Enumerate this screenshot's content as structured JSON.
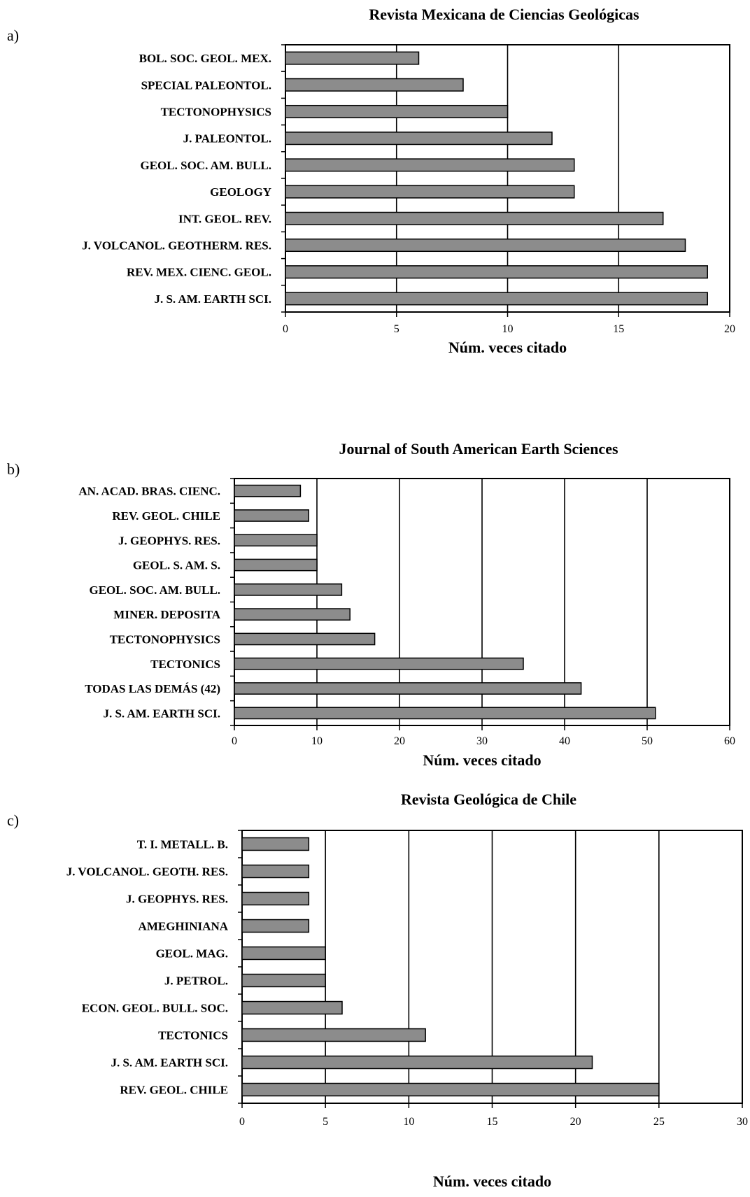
{
  "chart_data": [
    {
      "type": "bar",
      "orientation": "horizontal",
      "panel_label": "a)",
      "title": "Revista Mexicana de Ciencias Geológicas",
      "xlabel": "Núm. veces citado",
      "ylabel": "",
      "categories": [
        "BOL. SOC. GEOL. MEX.",
        "SPECIAL PALEONTOL.",
        "TECTONOPHYSICS",
        "J. PALEONTOL.",
        "GEOL. SOC. AM. BULL.",
        "GEOLOGY",
        "INT. GEOL. REV.",
        "J. VOLCANOL. GEOTHERM. RES.",
        "REV. MEX. CIENC. GEOL.",
        "J. S. AM. EARTH SCI."
      ],
      "values": [
        6,
        8,
        10,
        12,
        13,
        13,
        17,
        18,
        19,
        19
      ],
      "xlim": [
        0,
        20
      ],
      "xticks": [
        0,
        5,
        10,
        15,
        20
      ],
      "grid": true,
      "bar_color": "#8c8c8c"
    },
    {
      "type": "bar",
      "orientation": "horizontal",
      "panel_label": "b)",
      "title": "Journal of South American Earth Sciences",
      "xlabel": "Núm. veces citado",
      "ylabel": "",
      "categories": [
        "AN. ACAD. BRAS. CIENC.",
        "REV. GEOL. CHILE",
        "J. GEOPHYS. RES.",
        "GEOL. S. AM. S.",
        "GEOL. SOC. AM. BULL.",
        "MINER. DEPOSITA",
        "TECTONOPHYSICS",
        "TECTONICS",
        "TODAS LAS DEMÁS (42)",
        "J. S. AM. EARTH SCI."
      ],
      "values": [
        8,
        9,
        10,
        10,
        13,
        14,
        17,
        35,
        42,
        51
      ],
      "xlim": [
        0,
        60
      ],
      "xticks": [
        0,
        10,
        20,
        30,
        40,
        50,
        60
      ],
      "grid": true,
      "bar_color": "#8c8c8c"
    },
    {
      "type": "bar",
      "orientation": "horizontal",
      "panel_label": "c)",
      "title": "Revista Geológica de Chile",
      "xlabel": "Núm. veces citado",
      "ylabel": "",
      "categories": [
        "T. I. METALL. B.",
        "J. VOLCANOL. GEOTH. RES.",
        "J. GEOPHYS. RES.",
        "AMEGHINIANA",
        "GEOL. MAG.",
        "J. PETROL.",
        "ECON. GEOL. BULL. SOC.",
        "TECTONICS",
        "J. S. AM. EARTH SCI.",
        "REV. GEOL. CHILE"
      ],
      "values": [
        4,
        4,
        4,
        4,
        5,
        5,
        6,
        11,
        21,
        25
      ],
      "xlim": [
        0,
        30
      ],
      "xticks": [
        0,
        5,
        10,
        15,
        20,
        25,
        30
      ],
      "grid": true,
      "bar_color": "#8c8c8c"
    }
  ]
}
